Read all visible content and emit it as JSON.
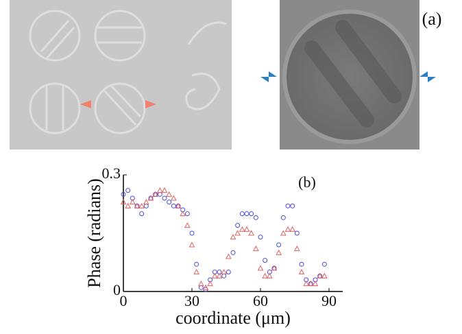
{
  "figure": {
    "panel_label": "(a)"
  },
  "chart_data": {
    "type": "scatter",
    "annotation": "(b)",
    "x_label": "coordinate (μm)",
    "y_label": "Phase (radians)",
    "x": [
      0,
      2,
      4,
      6,
      8,
      10,
      12,
      14,
      16,
      18,
      20,
      22,
      24,
      26,
      28,
      30,
      32,
      34,
      36,
      38,
      40,
      42,
      44,
      46,
      48,
      50,
      52,
      54,
      56,
      58,
      60,
      62,
      64,
      66,
      68,
      70,
      72,
      74,
      76,
      78,
      80,
      82,
      84,
      86,
      88
    ],
    "series": [
      {
        "color": "#4a4adf",
        "marker": "circle",
        "values": [
          0.25,
          0.26,
          0.24,
          0.22,
          0.2,
          0.22,
          0.24,
          0.25,
          0.25,
          0.24,
          0.23,
          0.22,
          0.22,
          0.21,
          0.2,
          0.15,
          0.07,
          0.01,
          0.005,
          0.03,
          0.05,
          0.05,
          0.04,
          0.05,
          0.1,
          0.17,
          0.2,
          0.2,
          0.2,
          0.19,
          0.14,
          0.08,
          0.05,
          0.06,
          0.12,
          0.19,
          0.22,
          0.22,
          0.15,
          0.07,
          0.03,
          0.02,
          0.03,
          0.04,
          0.07
        ]
      },
      {
        "color": "#e06060",
        "marker": "triangle",
        "values": [
          0.23,
          0.22,
          0.23,
          0.22,
          0.22,
          0.23,
          0.24,
          0.25,
          0.26,
          0.26,
          0.25,
          0.24,
          0.22,
          0.2,
          0.17,
          0.12,
          0.05,
          0.02,
          0.01,
          0.02,
          0.04,
          0.04,
          0.05,
          0.09,
          0.14,
          0.15,
          0.16,
          0.16,
          0.15,
          0.11,
          0.06,
          0.04,
          0.04,
          0.06,
          0.1,
          0.15,
          0.16,
          0.16,
          0.11,
          0.05,
          0.02,
          0.02,
          0.02,
          0.04,
          0.04
        ]
      }
    ],
    "xlim": [
      0,
      96
    ],
    "ylim": [
      0,
      0.3
    ],
    "xticks": [
      0,
      30,
      60,
      90
    ],
    "yticks": [
      0,
      0.3
    ]
  }
}
